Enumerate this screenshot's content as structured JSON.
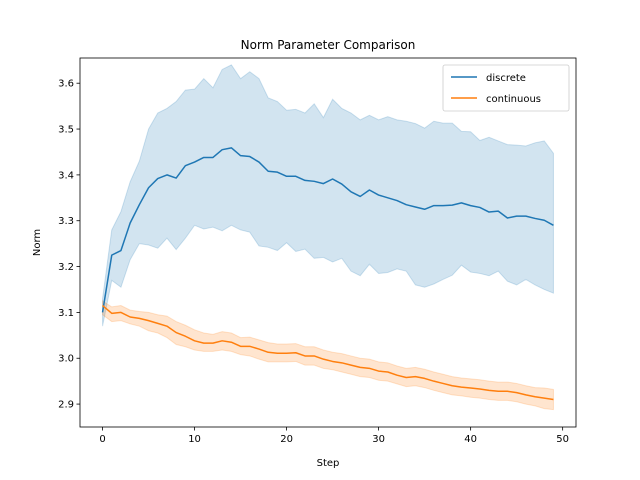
{
  "chart_data": {
    "type": "line",
    "title": "Norm Parameter Comparison",
    "xlabel": "Step",
    "ylabel": "Norm",
    "xlim": [
      -2.45,
      51.45
    ],
    "ylim": [
      2.85,
      3.655
    ],
    "xticks": [
      0,
      10,
      20,
      30,
      40,
      50
    ],
    "yticks": [
      2.9,
      3.0,
      3.1,
      3.2,
      3.3,
      3.4,
      3.5,
      3.6
    ],
    "grid": false,
    "legend_position": "top-right",
    "series": [
      {
        "name": "discrete",
        "color": "#1f77b4",
        "x": [
          0,
          1,
          2,
          3,
          4,
          5,
          6,
          7,
          8,
          9,
          10,
          11,
          12,
          13,
          14,
          15,
          16,
          17,
          18,
          19,
          20,
          21,
          22,
          23,
          24,
          25,
          26,
          27,
          28,
          29,
          30,
          31,
          32,
          33,
          34,
          35,
          36,
          37,
          38,
          39,
          40,
          41,
          42,
          43,
          44,
          45,
          46,
          47,
          48,
          49
        ],
        "y": [
          3.1,
          3.225,
          3.235,
          3.295,
          3.335,
          3.372,
          3.392,
          3.4,
          3.393,
          3.42,
          3.428,
          3.438,
          3.438,
          3.455,
          3.459,
          3.442,
          3.44,
          3.428,
          3.408,
          3.406,
          3.397,
          3.397,
          3.388,
          3.386,
          3.381,
          3.391,
          3.38,
          3.363,
          3.353,
          3.367,
          3.356,
          3.35,
          3.344,
          3.335,
          3.33,
          3.325,
          3.333,
          3.333,
          3.334,
          3.339,
          3.333,
          3.329,
          3.319,
          3.321,
          3.306,
          3.31,
          3.31,
          3.305,
          3.301,
          3.29
        ],
        "lower": [
          3.07,
          3.17,
          3.155,
          3.215,
          3.25,
          3.247,
          3.24,
          3.262,
          3.237,
          3.262,
          3.29,
          3.282,
          3.286,
          3.278,
          3.29,
          3.28,
          3.275,
          3.245,
          3.242,
          3.235,
          3.252,
          3.233,
          3.238,
          3.218,
          3.22,
          3.21,
          3.218,
          3.19,
          3.18,
          3.205,
          3.185,
          3.187,
          3.195,
          3.19,
          3.16,
          3.155,
          3.162,
          3.172,
          3.181,
          3.203,
          3.188,
          3.185,
          3.18,
          3.19,
          3.168,
          3.16,
          3.172,
          3.16,
          3.15,
          3.142
        ],
        "upper": [
          3.13,
          3.28,
          3.32,
          3.385,
          3.43,
          3.5,
          3.535,
          3.545,
          3.56,
          3.585,
          3.587,
          3.61,
          3.59,
          3.63,
          3.64,
          3.61,
          3.625,
          3.61,
          3.568,
          3.56,
          3.541,
          3.543,
          3.535,
          3.555,
          3.525,
          3.565,
          3.545,
          3.535,
          3.52,
          3.53,
          3.52,
          3.527,
          3.52,
          3.517,
          3.512,
          3.502,
          3.517,
          3.513,
          3.513,
          3.495,
          3.494,
          3.475,
          3.482,
          3.474,
          3.466,
          3.465,
          3.463,
          3.47,
          3.474,
          3.447
        ]
      },
      {
        "name": "continuous",
        "color": "#ff7f0e",
        "x": [
          0,
          1,
          2,
          3,
          4,
          5,
          6,
          7,
          8,
          9,
          10,
          11,
          12,
          13,
          14,
          15,
          16,
          17,
          18,
          19,
          20,
          21,
          22,
          23,
          24,
          25,
          26,
          27,
          28,
          29,
          30,
          31,
          32,
          33,
          34,
          35,
          36,
          37,
          38,
          39,
          40,
          41,
          42,
          43,
          44,
          45,
          46,
          47,
          48,
          49
        ],
        "y": [
          3.115,
          3.098,
          3.1,
          3.09,
          3.087,
          3.082,
          3.076,
          3.07,
          3.056,
          3.048,
          3.038,
          3.033,
          3.033,
          3.038,
          3.035,
          3.026,
          3.026,
          3.02,
          3.013,
          3.011,
          3.011,
          3.012,
          3.005,
          3.005,
          2.998,
          2.993,
          2.99,
          2.985,
          2.98,
          2.978,
          2.972,
          2.97,
          2.963,
          2.958,
          2.96,
          2.956,
          2.95,
          2.945,
          2.94,
          2.937,
          2.935,
          2.933,
          2.93,
          2.928,
          2.928,
          2.925,
          2.92,
          2.916,
          2.913,
          2.91
        ],
        "lower": [
          3.095,
          3.08,
          3.082,
          3.075,
          3.07,
          3.06,
          3.055,
          3.045,
          3.03,
          3.025,
          3.018,
          3.015,
          3.015,
          3.018,
          3.015,
          3.008,
          3.005,
          2.998,
          2.992,
          2.992,
          2.992,
          2.993,
          2.985,
          2.985,
          2.978,
          2.975,
          2.97,
          2.965,
          2.96,
          2.958,
          2.952,
          2.95,
          2.944,
          2.938,
          2.94,
          2.936,
          2.93,
          2.925,
          2.92,
          2.918,
          2.915,
          2.913,
          2.91,
          2.908,
          2.908,
          2.905,
          2.9,
          2.896,
          2.89,
          2.888
        ],
        "upper": [
          3.125,
          3.112,
          3.115,
          3.105,
          3.102,
          3.1,
          3.095,
          3.092,
          3.08,
          3.072,
          3.062,
          3.055,
          3.052,
          3.058,
          3.055,
          3.045,
          3.046,
          3.04,
          3.034,
          3.031,
          3.031,
          3.032,
          3.025,
          3.025,
          3.018,
          3.013,
          3.01,
          3.005,
          3.0,
          2.998,
          2.992,
          2.99,
          2.983,
          2.978,
          2.98,
          2.976,
          2.97,
          2.965,
          2.96,
          2.957,
          2.955,
          2.953,
          2.95,
          2.948,
          2.948,
          2.945,
          2.94,
          2.936,
          2.935,
          2.932
        ]
      }
    ]
  }
}
